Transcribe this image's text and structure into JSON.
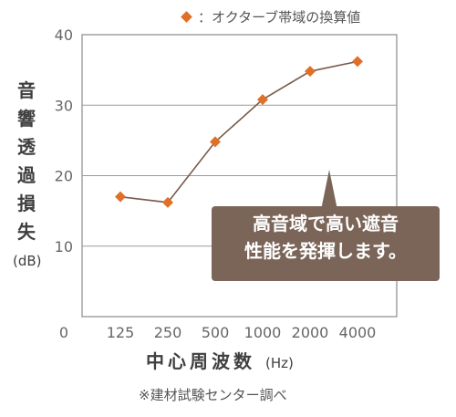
{
  "legend": {
    "label": "：オクターブ帯域の換算値",
    "marker_color": "#e07028"
  },
  "y_axis_label": "音響透過損失",
  "y_axis_unit": "(dB)",
  "x_axis_label": "中心周波数",
  "x_axis_unit": "(Hz)",
  "callout": {
    "line1": "高音域で高い遮音",
    "line2": "性能を発揮します。",
    "color": "#7a6558"
  },
  "note": "※建材試験センター調べ",
  "chart_data": {
    "type": "line",
    "categories": [
      "125",
      "250",
      "500",
      "1000",
      "2000",
      "4000"
    ],
    "series": [
      {
        "values": [
          17.0,
          16.2,
          24.8,
          30.8,
          34.8,
          36.2
        ]
      }
    ],
    "y_ticks": [
      "0",
      "10",
      "20",
      "30",
      "40"
    ],
    "ylim": [
      0,
      40
    ],
    "grid": true,
    "line_color": "#7a5a4a",
    "marker_color": "#e07028"
  }
}
